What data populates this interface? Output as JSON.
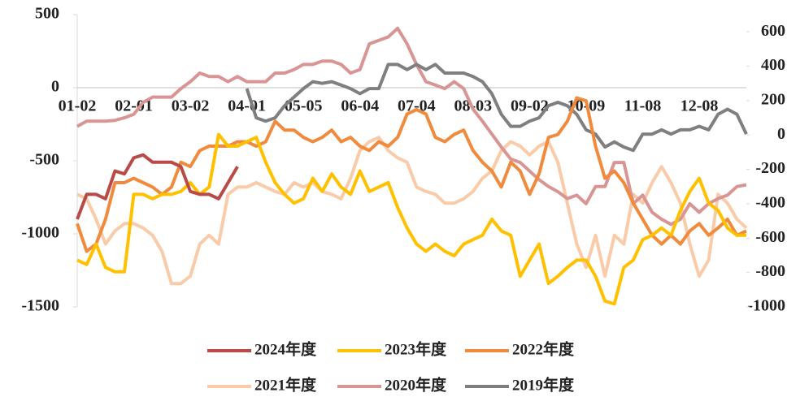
{
  "chart_data": {
    "type": "line",
    "categories": [
      "01-02",
      null,
      null,
      null,
      null,
      null,
      "02-01",
      null,
      null,
      null,
      null,
      null,
      "03-02",
      null,
      null,
      null,
      null,
      null,
      "04-01",
      null,
      null,
      null,
      null,
      null,
      "05-05",
      null,
      null,
      null,
      null,
      null,
      "06-04",
      null,
      null,
      null,
      null,
      null,
      "07-04",
      null,
      null,
      null,
      null,
      null,
      "08-03",
      null,
      null,
      null,
      null,
      null,
      "09-02",
      null,
      null,
      null,
      null,
      null,
      "10-09",
      null,
      null,
      null,
      null,
      null,
      "11-08",
      null,
      null,
      null,
      null,
      null,
      "12-08",
      null,
      null,
      null,
      null,
      null
    ],
    "ylim": [
      -1500,
      500
    ],
    "yticks": [
      -1500,
      -1000,
      -500,
      0,
      500
    ],
    "y2lim": [
      -1000,
      700
    ],
    "y2ticks": [
      -1000,
      -800,
      -600,
      -400,
      -200,
      0,
      200,
      400,
      600
    ],
    "legend": "bottom",
    "series": [
      {
        "name": "2024年度",
        "color": "#b94a48",
        "values": [
          -900,
          -730,
          -730,
          -760,
          -570,
          -590,
          -480,
          -460,
          -510,
          -510,
          -510,
          -540,
          -710,
          -730,
          -730,
          -760,
          -650,
          -540,
          null,
          null,
          null,
          null,
          null,
          null,
          null,
          null,
          null,
          null,
          null,
          null,
          null,
          null,
          null,
          null,
          null,
          null,
          null,
          null,
          null,
          null,
          null,
          null,
          null,
          null,
          null,
          null,
          null,
          null,
          null,
          null,
          null,
          null,
          null,
          null,
          null,
          null,
          null,
          null,
          null,
          null,
          null,
          null,
          null,
          null,
          null,
          null,
          null,
          null,
          null,
          null,
          null,
          null
        ]
      },
      {
        "name": "2023年度",
        "color": "#ffc000",
        "values": [
          -1180,
          -1210,
          -1070,
          -1230,
          -1260,
          -1260,
          -730,
          -730,
          -760,
          -730,
          -730,
          -710,
          -650,
          -730,
          -680,
          -320,
          -400,
          -400,
          -370,
          -340,
          -510,
          -650,
          -730,
          -790,
          -760,
          -620,
          -710,
          -590,
          -680,
          -730,
          -570,
          -710,
          -680,
          -650,
          -820,
          -960,
          -1070,
          -1120,
          -1070,
          -1120,
          -1150,
          -1070,
          -1040,
          -1010,
          -900,
          -980,
          -1010,
          -1290,
          -1180,
          -1070,
          -1340,
          -1290,
          -1230,
          -1180,
          -1180,
          -1290,
          -1460,
          -1480,
          -1230,
          -1180,
          -1040,
          -1010,
          -960,
          -1010,
          -840,
          -710,
          -620,
          -790,
          -840,
          -960,
          -1010,
          -1010
        ]
      },
      {
        "name": "2022年度",
        "color": "#f08a3c",
        "values": [
          -930,
          -1120,
          -1070,
          -900,
          -650,
          -650,
          -620,
          -650,
          -680,
          -730,
          -680,
          -510,
          -540,
          -430,
          -400,
          -400,
          -400,
          -370,
          -370,
          -400,
          -370,
          -230,
          -290,
          -290,
          -340,
          -370,
          -340,
          -290,
          -370,
          -340,
          -400,
          -430,
          -370,
          -400,
          -340,
          -180,
          -150,
          -180,
          -340,
          -370,
          -320,
          -290,
          -430,
          -510,
          -570,
          -680,
          -510,
          -570,
          -730,
          -590,
          -340,
          -320,
          -230,
          -70,
          -90,
          -400,
          -620,
          -570,
          -650,
          -790,
          -900,
          -1010,
          -1070,
          -1010,
          -1070,
          -980,
          -930,
          -1010,
          -960,
          -900,
          -1010,
          -980
        ]
      },
      {
        "name": "2021年度",
        "color": "#f9cba8",
        "values": [
          -730,
          -760,
          -900,
          -1070,
          -980,
          -930,
          -930,
          -960,
          -1010,
          -1120,
          -1340,
          -1340,
          -1290,
          -1070,
          -1010,
          -1070,
          -730,
          -680,
          -680,
          -650,
          -680,
          -710,
          -730,
          -650,
          -680,
          -650,
          -710,
          -730,
          -760,
          -620,
          -430,
          -370,
          -340,
          -430,
          -480,
          -510,
          -680,
          -710,
          -730,
          -790,
          -790,
          -760,
          -710,
          -620,
          -570,
          -430,
          -370,
          -400,
          -460,
          -400,
          -370,
          -510,
          -790,
          -1070,
          -1230,
          -1010,
          -1290,
          -1010,
          -1070,
          -730,
          -790,
          -650,
          -540,
          -650,
          -790,
          -1070,
          -1290,
          -1180,
          -730,
          -790,
          -900,
          -960
        ]
      },
      {
        "name": "2020年度",
        "color": "#d99594",
        "axis": "y2",
        "values": [
          50,
          80,
          80,
          80,
          85,
          100,
          120,
          190,
          220,
          220,
          220,
          270,
          310,
          360,
          340,
          340,
          310,
          340,
          310,
          310,
          310,
          360,
          360,
          380,
          410,
          410,
          430,
          430,
          410,
          360,
          380,
          530,
          550,
          570,
          620,
          530,
          410,
          310,
          290,
          270,
          310,
          270,
          150,
          80,
          5,
          -70,
          -140,
          -160,
          -210,
          -260,
          -300,
          -330,
          -370,
          -350,
          -400,
          -300,
          -300,
          -160,
          -160,
          -400,
          -350,
          -450,
          -490,
          -520,
          -490,
          -400,
          -450,
          -400,
          -370,
          -350,
          -300,
          -290
        ]
      },
      {
        "name": "2019年度",
        "color": "#7f7f7f",
        "axis": "y2",
        "values": [
          null,
          null,
          null,
          null,
          null,
          null,
          null,
          null,
          null,
          null,
          null,
          null,
          null,
          null,
          null,
          null,
          null,
          null,
          270,
          100,
          80,
          100,
          170,
          220,
          270,
          310,
          300,
          310,
          290,
          270,
          240,
          270,
          270,
          410,
          410,
          380,
          410,
          380,
          410,
          360,
          360,
          360,
          340,
          310,
          240,
          120,
          50,
          50,
          80,
          100,
          170,
          190,
          170,
          120,
          30,
          5,
          -70,
          -40,
          -70,
          -90,
          5,
          5,
          30,
          5,
          30,
          30,
          50,
          30,
          120,
          150,
          120,
          5
        ]
      }
    ]
  }
}
